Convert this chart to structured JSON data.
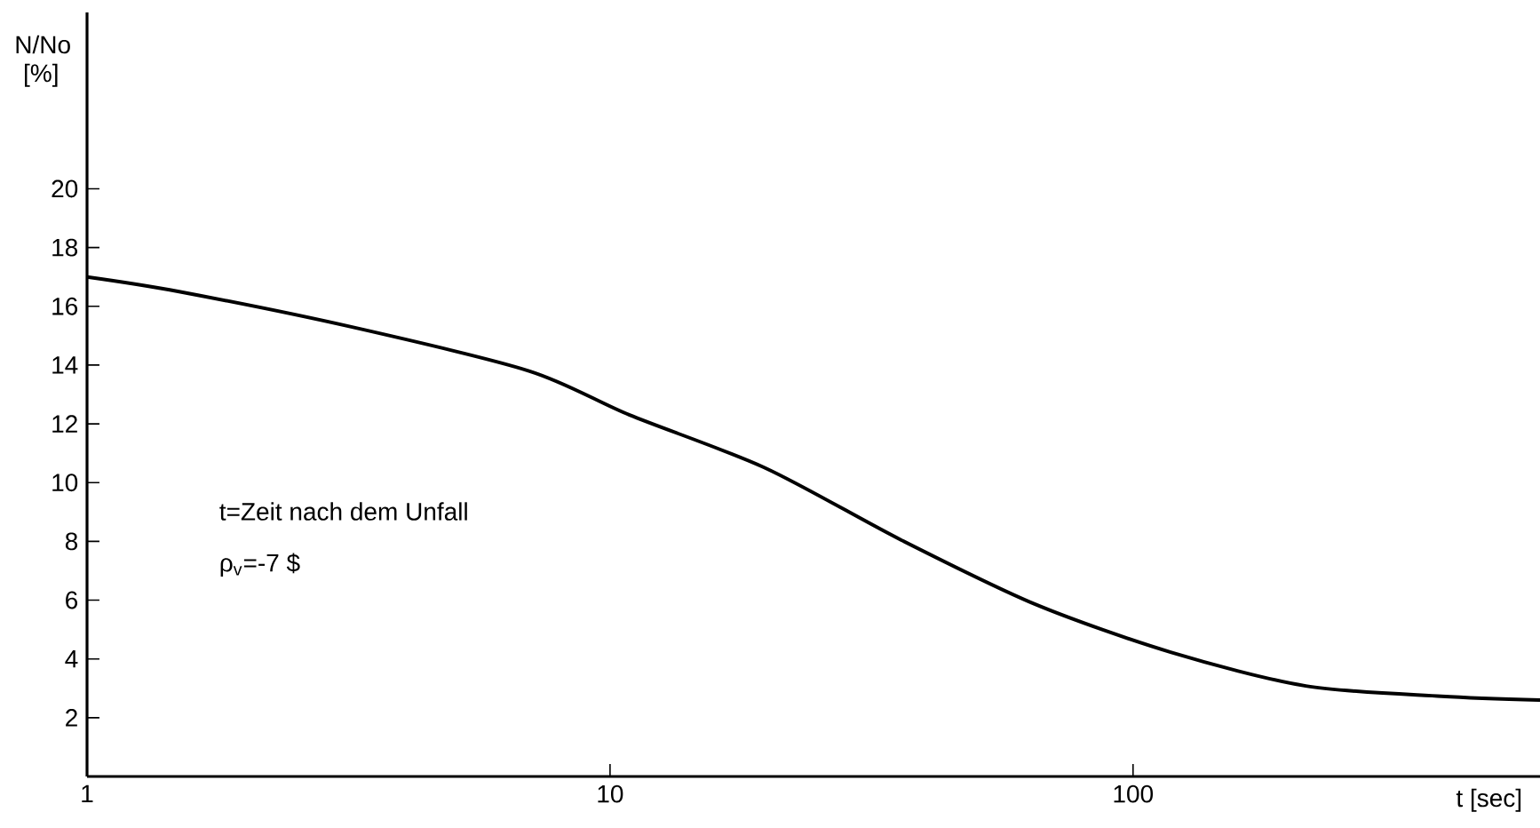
{
  "chart_data": {
    "type": "line",
    "xlabel": "t [sec]",
    "ylabel": "N/No [%]",
    "log": "x",
    "xlim": [
      1,
      600
    ],
    "xticks": [
      1,
      10,
      100
    ],
    "ylim": [
      0,
      26
    ],
    "yticks": [
      2,
      4,
      6,
      8,
      10,
      12,
      14,
      16,
      18,
      20
    ],
    "series": [
      {
        "color": "#000000",
        "x": [
          1,
          1.5,
          3.2,
          7,
          10.9,
          19.8,
          36,
          65,
          118,
          214,
          389,
          600
        ],
        "values": [
          17.0,
          16.5,
          15.3,
          13.8,
          12.3,
          10.5,
          8.05,
          5.86,
          4.23,
          3.08,
          2.73,
          2.6
        ]
      }
    ],
    "annotations": [
      "t=Zeit nach dem Unfall",
      "ρ$_{v}$=-7 $"
    ],
    "grid": false,
    "marker": "none",
    "line_style": "solid"
  }
}
